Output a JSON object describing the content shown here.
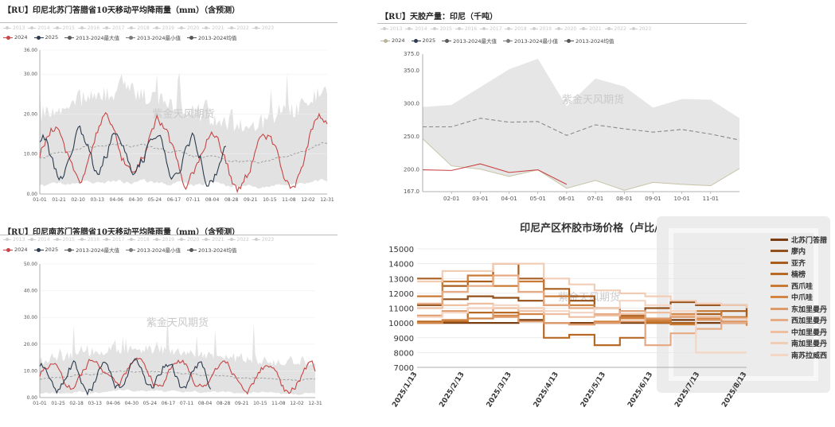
{
  "colors": {
    "y2024": "#c74545",
    "y2025": "#2b3a4d",
    "max": "#5a5a5a",
    "min": "#7a7a7a",
    "avg": "#555555",
    "band": "#e2e2e2"
  },
  "years": [
    "2013",
    "2014",
    "2015",
    "2016",
    "2017",
    "2018",
    "2019",
    "2020",
    "2021",
    "2022",
    "2023"
  ],
  "legend_common": {
    "y2024": "2024",
    "y2025": "2025",
    "max": "2013-2024最大值",
    "min": "2013-2024最小值",
    "avg": "2013-2024均值"
  },
  "watermark": "紫金天风期货",
  "panel_a": {
    "title": "【RU】印尼北苏门答腊省10天移动平均降雨量（mm）（含预测）",
    "chart_data": {
      "type": "line",
      "xlabel": "",
      "ylabel": "",
      "ylim": [
        0,
        36
      ],
      "yticks": [
        "0.00",
        "10.00",
        "20.00",
        "30.00",
        "36.00"
      ],
      "xticks": [
        "01-01",
        "01-21",
        "02-10",
        "03-13",
        "04-06",
        "04-30",
        "05-24",
        "06-17",
        "07-11",
        "08-04",
        "08-28",
        "09-21",
        "10-15",
        "11-08",
        "12-02",
        "12-31"
      ],
      "series": [
        {
          "name": "2024"
        },
        {
          "name": "2025"
        },
        {
          "name": "2013-2024最大值"
        },
        {
          "name": "2013-2024最小值"
        },
        {
          "name": "2013-2024均值"
        }
      ]
    }
  },
  "panel_b": {
    "title": "【RU】天胶产量：印尼（千吨）",
    "chart_data": {
      "type": "line",
      "xlabel": "",
      "ylabel": "",
      "ylim": [
        167,
        375
      ],
      "yticks": [
        "167.0",
        "200.0",
        "250.0",
        "300.0",
        "350.0",
        "375.0"
      ],
      "xticks": [
        "02-01",
        "03-01",
        "04-01",
        "05-01",
        "06-01",
        "07-01",
        "08-01",
        "09-01",
        "10-01",
        "11-01"
      ],
      "months": [
        "01-01",
        "02-01",
        "03-01",
        "04-01",
        "05-01",
        "06-01",
        "07-01",
        "08-01",
        "09-01",
        "10-01",
        "11-01",
        "12-01"
      ],
      "series": [
        {
          "name": "2024",
          "values": [
            200,
            199,
            209,
            196,
            200,
            178,
            null,
            null,
            null,
            null,
            null,
            null
          ]
        },
        {
          "name": "2013-2024最大值",
          "values": [
            295,
            298,
            325,
            352,
            368,
            296,
            338,
            326,
            294,
            307,
            306,
            278
          ]
        },
        {
          "name": "2013-2024最小值",
          "values": [
            247,
            206,
            201,
            190,
            200,
            172,
            184,
            169,
            181,
            178,
            176,
            202
          ]
        },
        {
          "name": "2013-2024均值",
          "values": [
            265,
            265,
            278,
            272,
            273,
            252,
            268,
            262,
            257,
            261,
            254,
            245
          ]
        }
      ]
    }
  },
  "panel_c": {
    "title": "【RU】印尼南苏门答腊省10天移动平均降雨量（mm）（含预测）",
    "chart_data": {
      "type": "line",
      "xlabel": "",
      "ylabel": "",
      "ylim": [
        0,
        50
      ],
      "yticks": [
        "0.00",
        "10.00",
        "20.00",
        "30.00",
        "40.00",
        "50.00"
      ],
      "xticks": [
        "01-01",
        "01-25",
        "02-18",
        "03-13",
        "04-06",
        "04-30",
        "05-24",
        "06-17",
        "07-11",
        "08-04",
        "08-28",
        "09-21",
        "10-15",
        "11-08",
        "12-02",
        "12-31"
      ],
      "series": [
        {
          "name": "2024"
        },
        {
          "name": "2025"
        },
        {
          "name": "2013-2024最大值"
        },
        {
          "name": "2013-2024最小值"
        },
        {
          "name": "2013-2024均值"
        }
      ]
    }
  },
  "panel_d": {
    "title": "印尼产区杯胶市场价格（卢比/千克）",
    "chart_data": {
      "type": "line",
      "xlabel": "",
      "ylabel": "",
      "ylim": [
        7000,
        15000
      ],
      "yticks": [
        "7000",
        "8000",
        "9000",
        "10000",
        "11000",
        "12000",
        "13000",
        "14000",
        "15000"
      ],
      "xticks": [
        "2025/1/13",
        "2025/2/13",
        "2025/3/13",
        "2025/4/13",
        "2025/5/13",
        "2025/6/13",
        "2025/7/13",
        "2025/8/13"
      ],
      "series": [
        {
          "name": "北苏门答腊",
          "color": "#7a3d10",
          "values": [
            10000,
            10000,
            10000,
            10000,
            10200,
            10000,
            10000,
            10000,
            10000,
            10000,
            10200,
            10000,
            10000,
            10000
          ]
        },
        {
          "name": "廖内",
          "color": "#93501b",
          "values": [
            11200,
            11600,
            11800,
            11700,
            11500,
            11200,
            11500,
            11000,
            10800,
            11000,
            11400,
            11200,
            11200,
            10500
          ]
        },
        {
          "name": "亚齐",
          "color": "#a85e1e",
          "values": [
            13000,
            12500,
            12800,
            14000,
            13000,
            12300,
            11800,
            11000,
            10500,
            10200,
            10000,
            10600,
            10800,
            10300
          ]
        },
        {
          "name": "楠榜",
          "color": "#b86a25",
          "values": [
            10100,
            10100,
            10700,
            10700,
            11000,
            9000,
            9200,
            8500,
            9000,
            10000,
            10500,
            10400,
            10100,
            10100
          ]
        },
        {
          "name": "西爪哇",
          "color": "#c97a35",
          "values": [
            11800,
            12800,
            13200,
            12500,
            12800,
            11800,
            11200,
            11000,
            10400,
            10100,
            9900,
            10800,
            10400,
            10300
          ]
        },
        {
          "name": "中爪哇",
          "color": "#d28544",
          "values": [
            10000,
            10200,
            10300,
            10500,
            10600,
            10000,
            9900,
            10100,
            10300,
            10200,
            10600,
            10300,
            10000,
            9800
          ]
        },
        {
          "name": "东加里曼丹",
          "color": "#de9a6a",
          "values": [
            10500,
            10800,
            11000,
            10400,
            10100,
            10000,
            9900,
            10000,
            10100,
            10300,
            10400,
            10200,
            10100,
            10000
          ]
        },
        {
          "name": "西加里曼丹",
          "color": "#e6ab84",
          "values": [
            11300,
            12100,
            12500,
            13200,
            12100,
            11200,
            11000,
            10600,
            10800,
            8500,
            9300,
            9600,
            10000,
            10000
          ]
        },
        {
          "name": "中加里曼丹",
          "color": "#edbfa0",
          "values": [
            11000,
            11200,
            11300,
            11000,
            10800,
            10600,
            10400,
            10500,
            10600,
            10700,
            10500,
            10400,
            10300,
            10200
          ]
        },
        {
          "name": "南加里曼丹",
          "color": "#f2cdb6",
          "values": [
            12800,
            13500,
            13500,
            14000,
            14000,
            13000,
            12600,
            12200,
            12000,
            11800,
            11500,
            11300,
            11200,
            11000
          ]
        },
        {
          "name": "南苏拉威西",
          "color": "#f5d6c4",
          "values": [
            10400,
            10700,
            11000,
            11200,
            11000,
            10800,
            10700,
            11000,
            11500,
            11200,
            10800,
            8000,
            8000,
            8000
          ]
        }
      ]
    }
  }
}
